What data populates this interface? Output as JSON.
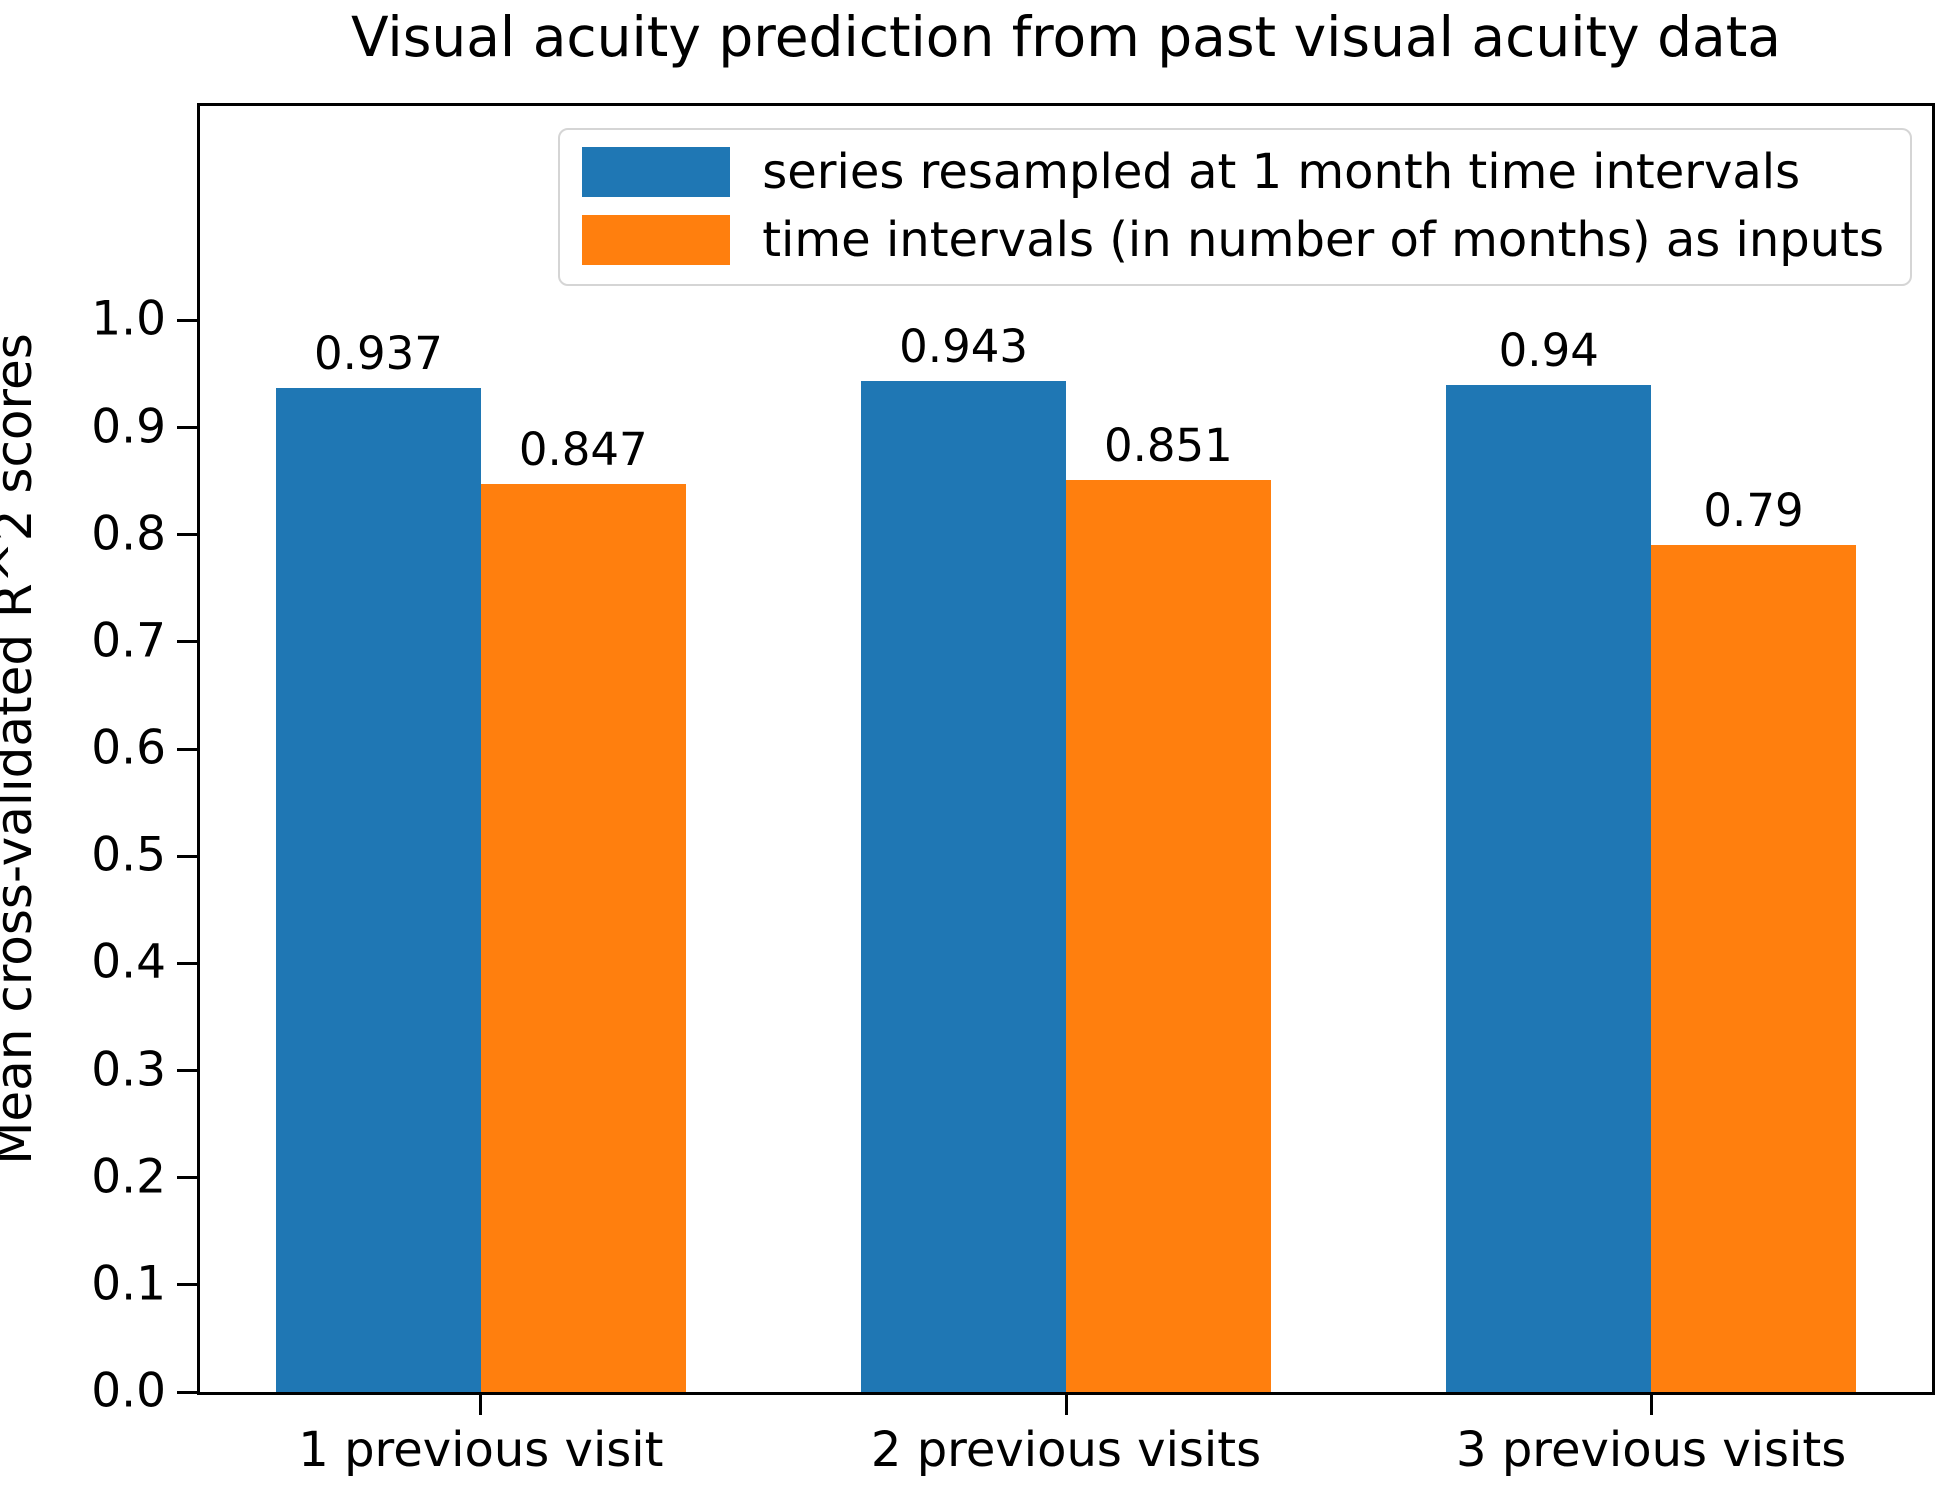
{
  "chart_data": {
    "type": "bar",
    "title": "Visual acuity prediction from past visual acuity data",
    "ylabel": "Mean cross-validated R^2 scores",
    "xlabel": "",
    "categories": [
      "1 previous visit",
      "2 previous visits",
      "3 previous visits"
    ],
    "series": [
      {
        "name": "series resampled at 1 month time intervals",
        "color": "#1f77b4",
        "values": [
          0.937,
          0.943,
          0.94
        ],
        "value_labels": [
          "0.937",
          "0.943",
          "0.94"
        ]
      },
      {
        "name": "time intervals (in number of months) as inputs",
        "color": "#ff7f0e",
        "values": [
          0.847,
          0.851,
          0.79
        ],
        "value_labels": [
          "0.847",
          "0.851",
          "0.79"
        ]
      }
    ],
    "ylim": [
      0,
      1.2
    ],
    "yticks": [
      "0.0",
      "0.1",
      "0.2",
      "0.3",
      "0.4",
      "0.5",
      "0.6",
      "0.7",
      "0.8",
      "0.9",
      "1.0"
    ],
    "xlim": [
      -0.48,
      2.48
    ],
    "bar_width": 0.35,
    "grid": false,
    "legend_position": "upper right"
  }
}
